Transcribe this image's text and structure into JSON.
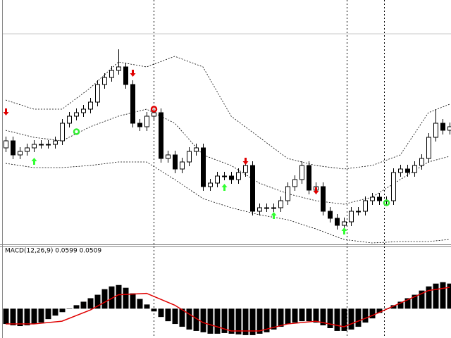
{
  "chart_data": [
    {
      "type": "candlestick",
      "categories": [
        null,
        null,
        null,
        null,
        null,
        null,
        null,
        null,
        null,
        null,
        null,
        null,
        null,
        null,
        null,
        null,
        null,
        null,
        null,
        null,
        null,
        null,
        null,
        null,
        null,
        null,
        null,
        null,
        null,
        null,
        null,
        null,
        null,
        null,
        null,
        null,
        null,
        null,
        null,
        null,
        null,
        null,
        null,
        null,
        null,
        null,
        null,
        null,
        null,
        null,
        null,
        null,
        null,
        null,
        null,
        null,
        null,
        null,
        null,
        null,
        null,
        null,
        null,
        null
      ],
      "open": [
        135,
        145,
        125,
        130,
        135,
        140,
        140,
        140,
        145,
        170,
        180,
        185,
        190,
        200,
        225,
        235,
        245,
        250,
        225,
        170,
        165,
        180,
        185,
        120,
        125,
        105,
        115,
        130,
        135,
        80,
        85,
        95,
        95,
        90,
        100,
        110,
        45,
        50,
        50,
        50,
        60,
        80,
        90,
        110,
        75,
        80,
        45,
        35,
        25,
        30,
        45,
        45,
        60,
        65,
        60,
        60,
        100,
        105,
        100,
        110,
        120,
        150,
        170,
        160
      ],
      "high": [
        151,
        151,
        136,
        141,
        146,
        146,
        146,
        151,
        176,
        186,
        191,
        196,
        206,
        231,
        241,
        251,
        275,
        256,
        231,
        176,
        186,
        191,
        191,
        131,
        131,
        121,
        136,
        141,
        141,
        91,
        101,
        101,
        101,
        106,
        116,
        116,
        56,
        56,
        56,
        66,
        86,
        96,
        116,
        116,
        86,
        86,
        51,
        41,
        36,
        51,
        51,
        66,
        71,
        71,
        66,
        106,
        111,
        111,
        116,
        126,
        156,
        190,
        176,
        171
      ],
      "low": [
        129,
        119,
        119,
        124,
        129,
        134,
        134,
        134,
        139,
        164,
        174,
        179,
        184,
        194,
        219,
        229,
        239,
        219,
        164,
        159,
        159,
        174,
        114,
        114,
        99,
        99,
        109,
        124,
        74,
        74,
        79,
        89,
        84,
        84,
        94,
        39,
        39,
        44,
        44,
        44,
        54,
        74,
        84,
        69,
        69,
        39,
        29,
        19,
        19,
        24,
        39,
        39,
        54,
        54,
        54,
        54,
        94,
        94,
        94,
        104,
        114,
        144,
        154,
        154
      ],
      "close": [
        145,
        125,
        130,
        135,
        140,
        140,
        140,
        145,
        170,
        180,
        185,
        190,
        200,
        225,
        235,
        245,
        250,
        225,
        170,
        165,
        180,
        185,
        120,
        125,
        105,
        115,
        130,
        135,
        80,
        85,
        95,
        95,
        90,
        100,
        110,
        45,
        50,
        50,
        50,
        60,
        80,
        90,
        110,
        75,
        80,
        45,
        35,
        25,
        30,
        45,
        45,
        60,
        65,
        60,
        60,
        100,
        105,
        100,
        110,
        120,
        150,
        170,
        160,
        165
      ],
      "ylim": [
        0,
        345
      ],
      "bands": [
        {
          "color": "#000000",
          "x": [
            0,
            4,
            8,
            12,
            16,
            20,
            24,
            28,
            32,
            36,
            40,
            44,
            48,
            52,
            56,
            60,
            63
          ],
          "values": [
            203,
            190,
            190,
            220,
            257,
            250,
            265,
            250,
            180,
            150,
            120,
            110,
            105,
            110,
            125,
            185,
            197
          ]
        },
        {
          "color": "#000000",
          "x": [
            0,
            4,
            8,
            12,
            16,
            20,
            24,
            28,
            32,
            36,
            40,
            44,
            48,
            52,
            56,
            60,
            63
          ],
          "values": [
            160,
            150,
            145,
            165,
            180,
            190,
            170,
            125,
            110,
            85,
            70,
            60,
            55,
            65,
            90,
            115,
            123
          ]
        },
        {
          "color": "#000000",
          "x": [
            0,
            4,
            8,
            12,
            16,
            20,
            24,
            28,
            32,
            36,
            40,
            44,
            48,
            52,
            56,
            60,
            63
          ],
          "values": [
            113,
            107,
            107,
            110,
            115,
            115,
            90,
            63,
            50,
            40,
            33,
            20,
            5,
            0,
            2,
            2,
            5
          ]
        }
      ],
      "down_arrows": {
        "color": "#e00000",
        "x": [
          0,
          18,
          34,
          44
        ],
        "values": [
          185,
          240,
          115,
          73
        ]
      },
      "up_arrows": {
        "color": "#33ff33",
        "x": [
          4,
          31,
          38,
          48
        ],
        "values": [
          117,
          80,
          40,
          18
        ]
      },
      "circles": [
        {
          "color": "#33ee33",
          "x": [
            10,
            54
          ],
          "values": [
            158,
            57
          ]
        },
        {
          "color": "#e00000",
          "x": [
            21
          ],
          "values": [
            190
          ]
        }
      ]
    },
    {
      "type": "macd",
      "title": "MACD(12,26,9) 0.0599 0.0509",
      "ylim": [
        -0.07,
        0.14
      ],
      "values": [
        -0.0365,
        -0.0398,
        -0.0415,
        -0.0398,
        -0.0365,
        -0.0332,
        -0.0249,
        -0.0166,
        -0.0083,
        0,
        0.0083,
        0.0166,
        0.0249,
        0.0332,
        0.0465,
        0.0531,
        0.0564,
        0.0498,
        0.0365,
        0.0232,
        0.01,
        -0.0066,
        -0.0199,
        -0.0299,
        -0.0365,
        -0.0432,
        -0.0498,
        -0.0531,
        -0.0564,
        -0.0598,
        -0.0598,
        -0.0581,
        -0.0598,
        -0.0614,
        -0.0631,
        -0.0631,
        -0.0598,
        -0.0564,
        -0.0498,
        -0.0432,
        -0.0365,
        -0.0332,
        -0.0299,
        -0.0299,
        -0.0332,
        -0.0398,
        -0.0465,
        -0.0531,
        -0.0531,
        -0.0498,
        -0.0432,
        -0.0332,
        -0.0232,
        -0.01,
        0,
        0.0083,
        0.0166,
        0.0249,
        0.0332,
        0.0432,
        0.0531,
        0.0598,
        0.0631,
        0.0599
      ],
      "color": "#000000",
      "signal": {
        "color": "#e00000",
        "x": [
          0,
          4,
          8,
          12,
          16,
          20,
          24,
          28,
          32,
          36,
          40,
          44,
          48,
          52,
          56,
          60,
          63
        ],
        "values": [
          -0.0365,
          -0.0365,
          -0.0299,
          -0.0033,
          0.0332,
          0.0365,
          0.0083,
          -0.0332,
          -0.0531,
          -0.0531,
          -0.0365,
          -0.0299,
          -0.0432,
          -0.0166,
          0.0133,
          0.0432,
          0.0509
        ]
      }
    }
  ]
}
